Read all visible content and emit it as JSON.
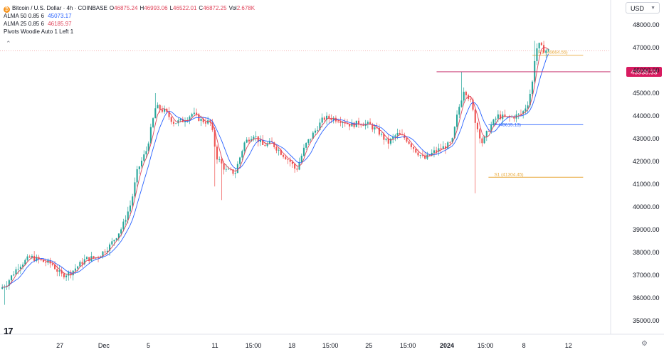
{
  "header": {
    "symbol": "Bitcoin / U.S. Dollar · 4h · COINBASE",
    "ohlc": [
      {
        "label": "O",
        "value": "46875.24"
      },
      {
        "label": "H",
        "value": "46993.06"
      },
      {
        "label": "L",
        "value": "46522.01"
      },
      {
        "label": "C",
        "value": "46872.25"
      },
      {
        "label": "Vol",
        "value": "2.678K"
      }
    ],
    "indicators": [
      {
        "name": "ALMA 50 0.85 6",
        "value": "45073.17",
        "color": "#2962ff"
      },
      {
        "name": "ALMA 25 0.85 6",
        "value": "46185.97",
        "color": "#e0445a"
      },
      {
        "name": "Pivots Woodie Auto 1 Left 1",
        "value": ""
      }
    ]
  },
  "currency": "USD",
  "icons": {
    "coin": "bitcoin-icon",
    "logo": "tradingview-logo-icon",
    "settings": "gear-icon",
    "collapse": "chevron-up-icon"
  },
  "logo_text": "17",
  "chart_data": {
    "type": "candlestick",
    "ylim": [
      35000,
      48500
    ],
    "yticks": [
      48000,
      47000,
      46000,
      45000,
      44000,
      43000,
      42000,
      41000,
      40000,
      39000,
      38000,
      37000,
      36000,
      35000
    ],
    "ytick_labels": [
      "48000.00",
      "47000.00",
      "46000.00",
      "45000.00",
      "44000.00",
      "43000.00",
      "42000.00",
      "41000.00",
      "40000.00",
      "39000.00",
      "38000.00",
      "37000.00",
      "36000.00",
      "35000.00"
    ],
    "xticks": [
      {
        "label": "27",
        "pos": 0.098
      },
      {
        "label": "Dec",
        "pos": 0.17
      },
      {
        "label": "5",
        "pos": 0.243
      },
      {
        "label": "11",
        "pos": 0.352
      },
      {
        "label": "15:00",
        "pos": 0.415
      },
      {
        "label": "18",
        "pos": 0.478
      },
      {
        "label": "15:00",
        "pos": 0.541
      },
      {
        "label": "25",
        "pos": 0.604
      },
      {
        "label": "15:00",
        "pos": 0.668
      },
      {
        "label": "2024",
        "pos": 0.732
      },
      {
        "label": "15:00",
        "pos": 0.795
      },
      {
        "label": "8",
        "pos": 0.858
      },
      {
        "label": "12",
        "pos": 0.931
      }
    ],
    "price_key_points": [
      [
        0,
        36400
      ],
      [
        0.01,
        36600
      ],
      [
        0.03,
        37400
      ],
      [
        0.05,
        37800
      ],
      [
        0.07,
        37600
      ],
      [
        0.085,
        37500
      ],
      [
        0.1,
        37000
      ],
      [
        0.115,
        37100
      ],
      [
        0.14,
        37700
      ],
      [
        0.16,
        37800
      ],
      [
        0.18,
        38300
      ],
      [
        0.2,
        39100
      ],
      [
        0.215,
        40200
      ],
      [
        0.225,
        41600
      ],
      [
        0.24,
        42500
      ],
      [
        0.255,
        44400
      ],
      [
        0.27,
        44200
      ],
      [
        0.285,
        43700
      ],
      [
        0.3,
        43800
      ],
      [
        0.315,
        44100
      ],
      [
        0.33,
        43800
      ],
      [
        0.345,
        43700
      ],
      [
        0.355,
        42200
      ],
      [
        0.37,
        41600
      ],
      [
        0.385,
        41500
      ],
      [
        0.4,
        42800
      ],
      [
        0.415,
        43200
      ],
      [
        0.43,
        42700
      ],
      [
        0.445,
        42800
      ],
      [
        0.46,
        42400
      ],
      [
        0.475,
        42000
      ],
      [
        0.485,
        41600
      ],
      [
        0.5,
        42700
      ],
      [
        0.515,
        43300
      ],
      [
        0.53,
        43900
      ],
      [
        0.545,
        43900
      ],
      [
        0.56,
        43800
      ],
      [
        0.575,
        43600
      ],
      [
        0.59,
        43700
      ],
      [
        0.605,
        43600
      ],
      [
        0.62,
        43300
      ],
      [
        0.635,
        42800
      ],
      [
        0.65,
        43200
      ],
      [
        0.665,
        43000
      ],
      [
        0.68,
        42500
      ],
      [
        0.695,
        42100
      ],
      [
        0.71,
        42400
      ],
      [
        0.725,
        42600
      ],
      [
        0.74,
        42800
      ],
      [
        0.75,
        44200
      ],
      [
        0.76,
        45200
      ],
      [
        0.77,
        44700
      ],
      [
        0.78,
        43600
      ],
      [
        0.79,
        42800
      ],
      [
        0.8,
        43400
      ],
      [
        0.815,
        44000
      ],
      [
        0.83,
        43900
      ],
      [
        0.845,
        44000
      ],
      [
        0.855,
        44100
      ],
      [
        0.865,
        44600
      ],
      [
        0.872,
        45500
      ],
      [
        0.877,
        46900
      ],
      [
        0.883,
        47100
      ],
      [
        0.89,
        46900
      ],
      [
        0.898,
        46870
      ]
    ],
    "series": [
      {
        "name": "ALMA 50 0.85 6",
        "color": "#2962ff"
      },
      {
        "name": "ALMA 25 0.85 6",
        "color": "#e0445a"
      }
    ],
    "pivots": [
      {
        "label": "R1 (46664.55)",
        "value": 46664.55,
        "start": 0.872,
        "end": 0.955
      },
      {
        "label": "",
        "value": 43615.13,
        "start": 0.8,
        "end": 0.955
      },
      {
        "label": "S1 (41304.45)",
        "value": 41304.45,
        "start": 0.8,
        "end": 0.955
      }
    ],
    "pivot_p_label": "P (43615.13)",
    "horizontal_line": {
      "value": 45938.33,
      "start": 0.715
    },
    "price_label": "45938.33",
    "dotted_line": 46860,
    "up_color": "#26a69a",
    "down_color": "#ef5350"
  }
}
